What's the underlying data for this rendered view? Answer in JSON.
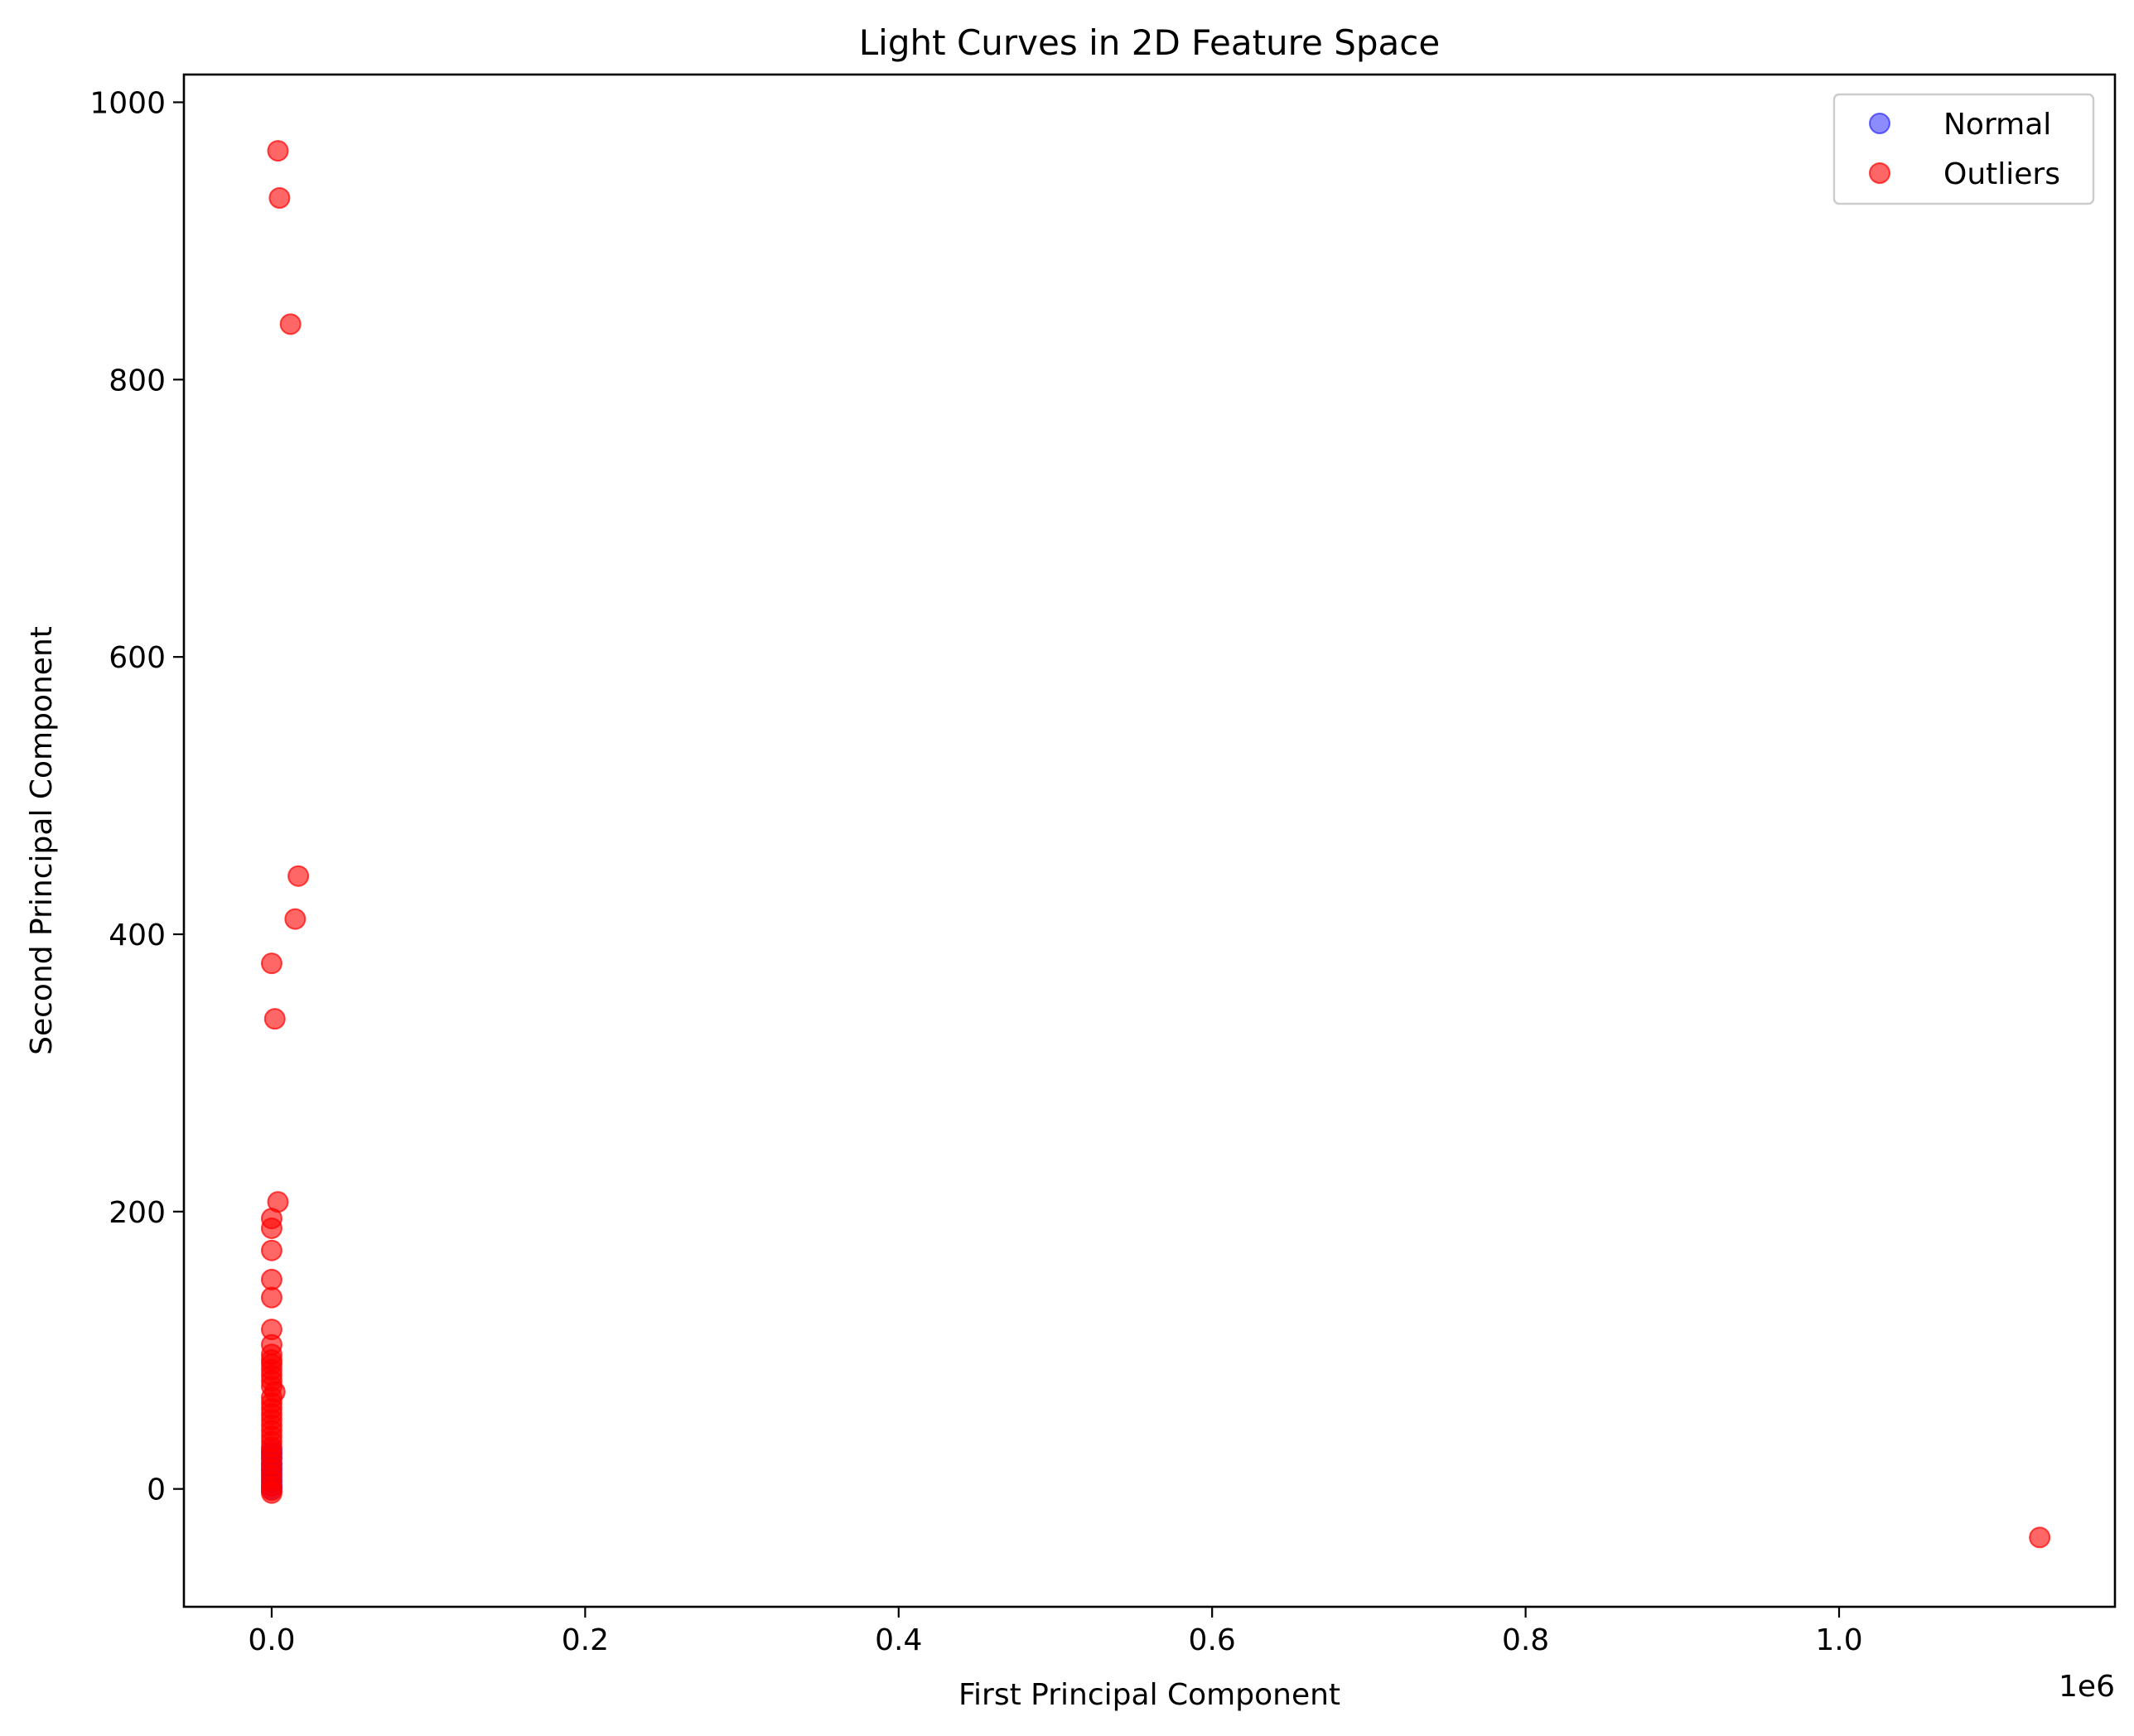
{
  "chart_data": {
    "type": "scatter",
    "title": "Light Curves in 2D Feature Space",
    "xlabel": "First Principal Component",
    "ylabel": "Second Principal Component",
    "x_offset_text": "1e6",
    "x_scale_factor": 1000000,
    "xlim": [
      -0.056,
      1.176
    ],
    "ylim": [
      -85,
      1020
    ],
    "xticks": [
      0.0,
      0.2,
      0.4,
      0.6,
      0.8,
      1.0
    ],
    "xtick_labels": [
      "0.0",
      "0.2",
      "0.4",
      "0.6",
      "0.8",
      "1.0"
    ],
    "yticks": [
      0,
      200,
      400,
      600,
      800,
      1000
    ],
    "ytick_labels": [
      "0",
      "200",
      "400",
      "600",
      "800",
      "1000"
    ],
    "grid": false,
    "legend_position": "top-right",
    "series": [
      {
        "name": "Normal",
        "color": "#0000ff",
        "alpha": 0.45,
        "points": [
          [
            0.0,
            0
          ],
          [
            0.0,
            2
          ],
          [
            0.0,
            5
          ],
          [
            0.0,
            8
          ],
          [
            0.0,
            12
          ],
          [
            0.0,
            15
          ],
          [
            0.0,
            18
          ],
          [
            0.0,
            22
          ],
          [
            0.0,
            25
          ],
          [
            0.0,
            28
          ]
        ]
      },
      {
        "name": "Outliers",
        "color": "#ff0000",
        "alpha": 0.6,
        "points": [
          [
            0.004,
            965
          ],
          [
            0.005,
            931
          ],
          [
            0.012,
            840
          ],
          [
            0.017,
            442
          ],
          [
            0.015,
            411
          ],
          [
            0.0,
            379
          ],
          [
            0.002,
            339
          ],
          [
            0.004,
            207
          ],
          [
            0.0,
            195
          ],
          [
            0.0,
            188
          ],
          [
            0.0,
            172
          ],
          [
            0.0,
            151
          ],
          [
            0.0,
            138
          ],
          [
            0.0,
            115
          ],
          [
            0.0,
            104
          ],
          [
            0.0,
            97
          ],
          [
            0.0,
            93
          ],
          [
            0.0,
            90
          ],
          [
            0.0,
            86
          ],
          [
            0.0,
            82
          ],
          [
            0.0,
            78
          ],
          [
            0.0,
            74
          ],
          [
            0.002,
            70
          ],
          [
            0.0,
            66
          ],
          [
            0.0,
            62
          ],
          [
            0.0,
            58
          ],
          [
            0.0,
            54
          ],
          [
            0.0,
            50
          ],
          [
            0.0,
            46
          ],
          [
            0.0,
            42
          ],
          [
            0.0,
            38
          ],
          [
            0.0,
            34
          ],
          [
            0.0,
            30
          ],
          [
            0.0,
            26
          ],
          [
            0.0,
            22
          ],
          [
            0.0,
            18
          ],
          [
            0.0,
            14
          ],
          [
            0.0,
            10
          ],
          [
            0.0,
            6
          ],
          [
            0.0,
            2
          ],
          [
            0.0,
            -1
          ],
          [
            0.0,
            -3
          ],
          [
            1.128,
            -35
          ]
        ]
      }
    ]
  }
}
